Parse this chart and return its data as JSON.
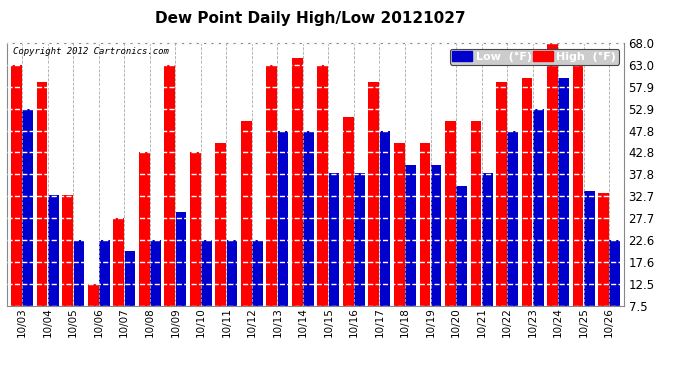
{
  "title": "Dew Point Daily High/Low 20121027",
  "copyright": "Copyright 2012 Cartronics.com",
  "dates": [
    "10/03",
    "10/04",
    "10/05",
    "10/06",
    "10/07",
    "10/08",
    "10/09",
    "10/10",
    "10/11",
    "10/12",
    "10/13",
    "10/14",
    "10/15",
    "10/16",
    "10/17",
    "10/18",
    "10/19",
    "10/20",
    "10/21",
    "10/22",
    "10/23",
    "10/24",
    "10/25",
    "10/26"
  ],
  "high_vals": [
    63.0,
    59.0,
    33.0,
    12.5,
    27.7,
    43.0,
    63.0,
    42.8,
    45.0,
    50.0,
    63.0,
    64.5,
    63.0,
    51.0,
    59.0,
    45.0,
    45.0,
    50.0,
    50.0,
    59.0,
    60.0,
    68.0,
    63.5,
    33.5
  ],
  "low_vals": [
    52.9,
    33.0,
    22.6,
    22.6,
    20.0,
    22.6,
    29.0,
    22.6,
    22.6,
    22.6,
    47.8,
    47.8,
    38.0,
    38.0,
    47.8,
    40.0,
    40.0,
    35.0,
    38.0,
    47.8,
    52.9,
    60.0,
    34.0,
    22.6
  ],
  "bar_color_high": "#FF0000",
  "bar_color_low": "#0000CC",
  "bg_color": "#FFFFFF",
  "grid_color": "#AAAAAA",
  "ytick_vals": [
    7.5,
    12.5,
    17.6,
    22.6,
    27.7,
    32.7,
    37.8,
    42.8,
    47.8,
    52.9,
    57.9,
    63.0,
    68.0
  ],
  "ymin": 7.5,
  "ymax": 68.0,
  "legend_low_label": "Low  (°F)",
  "legend_high_label": "High  (°F)"
}
